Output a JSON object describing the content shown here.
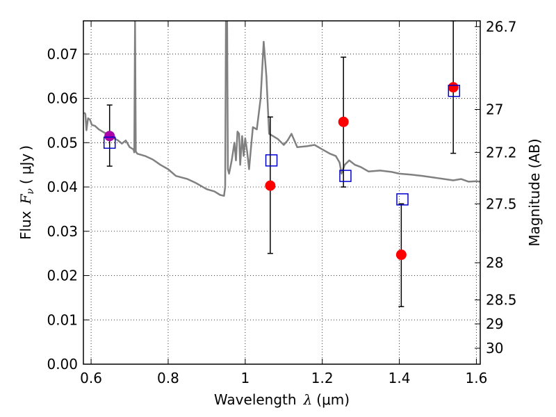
{
  "chart_data": {
    "type": "scatter",
    "xlabel_text": "Wavelength",
    "xlabel_symbol": "λ",
    "xlabel_unit": "(μm)",
    "ylabel_text": "Flux",
    "ylabel_symbol": "F",
    "ylabel_subscript": "ν",
    "ylabel_unit": "μJy",
    "y2label": "Magnitude (AB)",
    "xlim": [
      0.58,
      1.61
    ],
    "ylim": [
      0.0,
      0.0775
    ],
    "xticks": [
      0.6,
      0.8,
      1.0,
      1.2,
      1.4,
      1.6
    ],
    "xtick_labels": [
      "0.6",
      "0.8",
      "1",
      "1.2",
      "1.4",
      "1.6"
    ],
    "yticks": [
      0.0,
      0.01,
      0.02,
      0.03,
      0.04,
      0.05,
      0.06,
      0.07
    ],
    "ytick_labels": [
      "0.00",
      "0.01",
      "0.02",
      "0.03",
      "0.04",
      "0.05",
      "0.06",
      "0.07"
    ],
    "y2ticks": [
      {
        "label": "26.7",
        "flux": 0.0762
      },
      {
        "label": "27",
        "flux": 0.0575
      },
      {
        "label": "27.2",
        "flux": 0.0478
      },
      {
        "label": "27.5",
        "flux": 0.0362
      },
      {
        "label": "28",
        "flux": 0.0229
      },
      {
        "label": "28.5",
        "flux": 0.0145
      },
      {
        "label": "29",
        "flux": 0.0091
      },
      {
        "label": "30",
        "flux": 0.0036
      }
    ],
    "grid": true,
    "grid_style": "dotted",
    "series": [
      {
        "kind": "line",
        "color": "#808080",
        "points": [
          [
            0.582,
            0.0568
          ],
          [
            0.585,
            0.0565
          ],
          [
            0.588,
            0.0528
          ],
          [
            0.592,
            0.0555
          ],
          [
            0.597,
            0.0552
          ],
          [
            0.602,
            0.054
          ],
          [
            0.61,
            0.0538
          ],
          [
            0.62,
            0.053
          ],
          [
            0.63,
            0.0525
          ],
          [
            0.64,
            0.052
          ],
          [
            0.65,
            0.0515
          ],
          [
            0.66,
            0.051
          ],
          [
            0.67,
            0.0505
          ],
          [
            0.68,
            0.0498
          ],
          [
            0.69,
            0.0505
          ],
          [
            0.7,
            0.049
          ],
          [
            0.71,
            0.0485
          ],
          [
            0.712,
            0.0478
          ],
          [
            0.714,
            0.0775
          ],
          [
            0.716,
            0.048
          ],
          [
            0.72,
            0.0475
          ],
          [
            0.74,
            0.047
          ],
          [
            0.76,
            0.0462
          ],
          [
            0.78,
            0.045
          ],
          [
            0.8,
            0.044
          ],
          [
            0.82,
            0.0425
          ],
          [
            0.85,
            0.0418
          ],
          [
            0.87,
            0.041
          ],
          [
            0.9,
            0.0395
          ],
          [
            0.92,
            0.039
          ],
          [
            0.935,
            0.0382
          ],
          [
            0.945,
            0.038
          ],
          [
            0.948,
            0.04
          ],
          [
            0.95,
            0.0775
          ],
          [
            0.953,
            0.0775
          ],
          [
            0.955,
            0.044
          ],
          [
            0.958,
            0.043
          ],
          [
            0.965,
            0.046
          ],
          [
            0.972,
            0.05
          ],
          [
            0.976,
            0.046
          ],
          [
            0.98,
            0.0525
          ],
          [
            0.984,
            0.052
          ],
          [
            0.987,
            0.045
          ],
          [
            0.992,
            0.0515
          ],
          [
            0.996,
            0.047
          ],
          [
            1.0,
            0.051
          ],
          [
            1.005,
            0.048
          ],
          [
            1.01,
            0.044
          ],
          [
            1.015,
            0.049
          ],
          [
            1.02,
            0.0535
          ],
          [
            1.03,
            0.053
          ],
          [
            1.04,
            0.06
          ],
          [
            1.048,
            0.0728
          ],
          [
            1.055,
            0.065
          ],
          [
            1.062,
            0.052
          ],
          [
            1.072,
            0.0515
          ],
          [
            1.085,
            0.0508
          ],
          [
            1.1,
            0.0495
          ],
          [
            1.11,
            0.0505
          ],
          [
            1.12,
            0.052
          ],
          [
            1.135,
            0.049
          ],
          [
            1.16,
            0.0492
          ],
          [
            1.18,
            0.0495
          ],
          [
            1.2,
            0.0485
          ],
          [
            1.22,
            0.0475
          ],
          [
            1.235,
            0.047
          ],
          [
            1.245,
            0.0455
          ],
          [
            1.25,
            0.043
          ],
          [
            1.258,
            0.045
          ],
          [
            1.27,
            0.046
          ],
          [
            1.285,
            0.045
          ],
          [
            1.3,
            0.0445
          ],
          [
            1.32,
            0.0435
          ],
          [
            1.35,
            0.0437
          ],
          [
            1.38,
            0.0434
          ],
          [
            1.4,
            0.043
          ],
          [
            1.43,
            0.0428
          ],
          [
            1.46,
            0.0425
          ],
          [
            1.5,
            0.042
          ],
          [
            1.54,
            0.0415
          ],
          [
            1.56,
            0.0418
          ],
          [
            1.58,
            0.0412
          ],
          [
            1.6,
            0.0413
          ],
          [
            1.61,
            0.0412
          ]
        ]
      },
      {
        "kind": "errorbar",
        "marker": "circle",
        "color": "#ff0000",
        "ecolor": "#000000",
        "points": [
          {
            "x": 1.065,
            "y": 0.0403,
            "ylo": 0.025,
            "yhi": 0.0558
          },
          {
            "x": 1.255,
            "y": 0.0547,
            "ylo": 0.04,
            "yhi": 0.0693
          },
          {
            "x": 1.405,
            "y": 0.0247,
            "ylo": 0.013,
            "yhi": 0.0362
          },
          {
            "x": 1.54,
            "y": 0.0625,
            "ylo": 0.0476,
            "yhi": 0.0775
          }
        ]
      },
      {
        "kind": "errorbar",
        "marker": "circle",
        "color": "#aa00aa",
        "ecolor": "#000000",
        "points": [
          {
            "x": 0.648,
            "y": 0.0515,
            "ylo": 0.0447,
            "yhi": 0.0585
          }
        ]
      },
      {
        "kind": "scatter",
        "marker": "open-square",
        "color": "#0000cc",
        "points": [
          [
            0.648,
            0.05
          ],
          [
            1.068,
            0.046
          ],
          [
            1.26,
            0.0425
          ],
          [
            1.408,
            0.0372
          ],
          [
            1.542,
            0.0617
          ]
        ]
      }
    ]
  }
}
